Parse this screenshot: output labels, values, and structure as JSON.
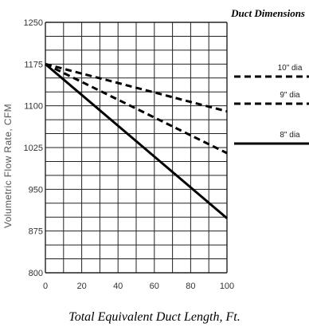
{
  "chart_data": {
    "type": "line",
    "title": "Duct Dimensions",
    "xlabel": "Total Equivalent Duct Length, Ft.",
    "ylabel": "Volumetric Flow Rate, CFM",
    "xlim": [
      0,
      100
    ],
    "ylim": [
      800,
      1250
    ],
    "xticks": [
      0,
      20,
      40,
      60,
      80,
      100
    ],
    "yticks": [
      800,
      875,
      950,
      1025,
      1100,
      1175,
      1250
    ],
    "grid": true,
    "legend_placement": "right",
    "series": [
      {
        "name": "10\" dia",
        "style": "dashed",
        "x": [
          0,
          100
        ],
        "y": [
          1175,
          1090
        ]
      },
      {
        "name": "9\" dia",
        "style": "dashed",
        "x": [
          0,
          100
        ],
        "y": [
          1175,
          1015
        ]
      },
      {
        "name": "8\" dia",
        "style": "solid",
        "x": [
          0,
          100
        ],
        "y": [
          1175,
          898
        ]
      }
    ]
  },
  "colors": {
    "grid": "#222222",
    "line": "#000000",
    "background": "#ffffff"
  }
}
